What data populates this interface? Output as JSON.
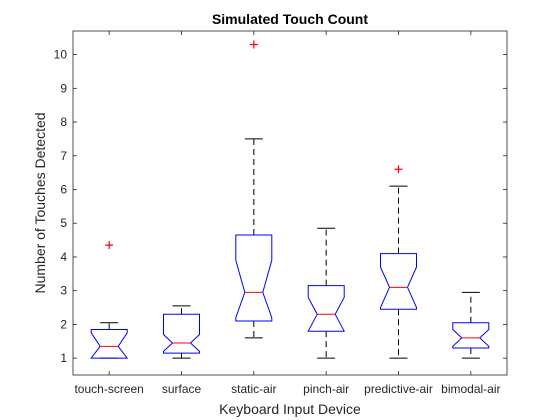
{
  "chart_data": {
    "type": "boxplot",
    "title": "Simulated Touch Count",
    "xlabel": "Keyboard Input Device",
    "ylabel": "Number of Touches Detected",
    "ylim": [
      0.5,
      10.7
    ],
    "yticks": [
      "1",
      "2",
      "3",
      "4",
      "5",
      "6",
      "7",
      "8",
      "9",
      "10"
    ],
    "notched": true,
    "colors": {
      "box": "#0000ff",
      "median": "#ff0000",
      "whisker": "#000000",
      "outlier": "#ff0000"
    },
    "categories": [
      "touch-screen",
      "surface",
      "static-air",
      "pinch-air",
      "predictive-air",
      "bimodal-air"
    ],
    "boxes": [
      {
        "whisker_low": 1.0,
        "q1": 1.0,
        "notch_low": 1.0,
        "median": 1.35,
        "notch_high": 1.75,
        "q3": 1.85,
        "whisker_high": 2.05,
        "outliers": [
          4.35
        ]
      },
      {
        "whisker_low": 1.0,
        "q1": 1.15,
        "notch_low": 1.2,
        "median": 1.45,
        "notch_high": 1.7,
        "q3": 2.3,
        "whisker_high": 2.55,
        "outliers": []
      },
      {
        "whisker_low": 1.6,
        "q1": 2.1,
        "notch_low": 2.2,
        "median": 2.95,
        "notch_high": 3.9,
        "q3": 4.65,
        "whisker_high": 7.5,
        "outliers": [
          10.3
        ]
      },
      {
        "whisker_low": 1.0,
        "q1": 1.8,
        "notch_low": 1.8,
        "median": 2.3,
        "notch_high": 2.8,
        "q3": 3.15,
        "whisker_high": 4.85,
        "outliers": []
      },
      {
        "whisker_low": 1.0,
        "q1": 2.45,
        "notch_low": 2.5,
        "median": 3.1,
        "notch_high": 3.7,
        "q3": 4.1,
        "whisker_high": 6.1,
        "outliers": [
          6.6
        ]
      },
      {
        "whisker_low": 1.0,
        "q1": 1.3,
        "notch_low": 1.35,
        "median": 1.6,
        "notch_high": 1.85,
        "q3": 2.05,
        "whisker_high": 2.95,
        "outliers": []
      }
    ]
  }
}
